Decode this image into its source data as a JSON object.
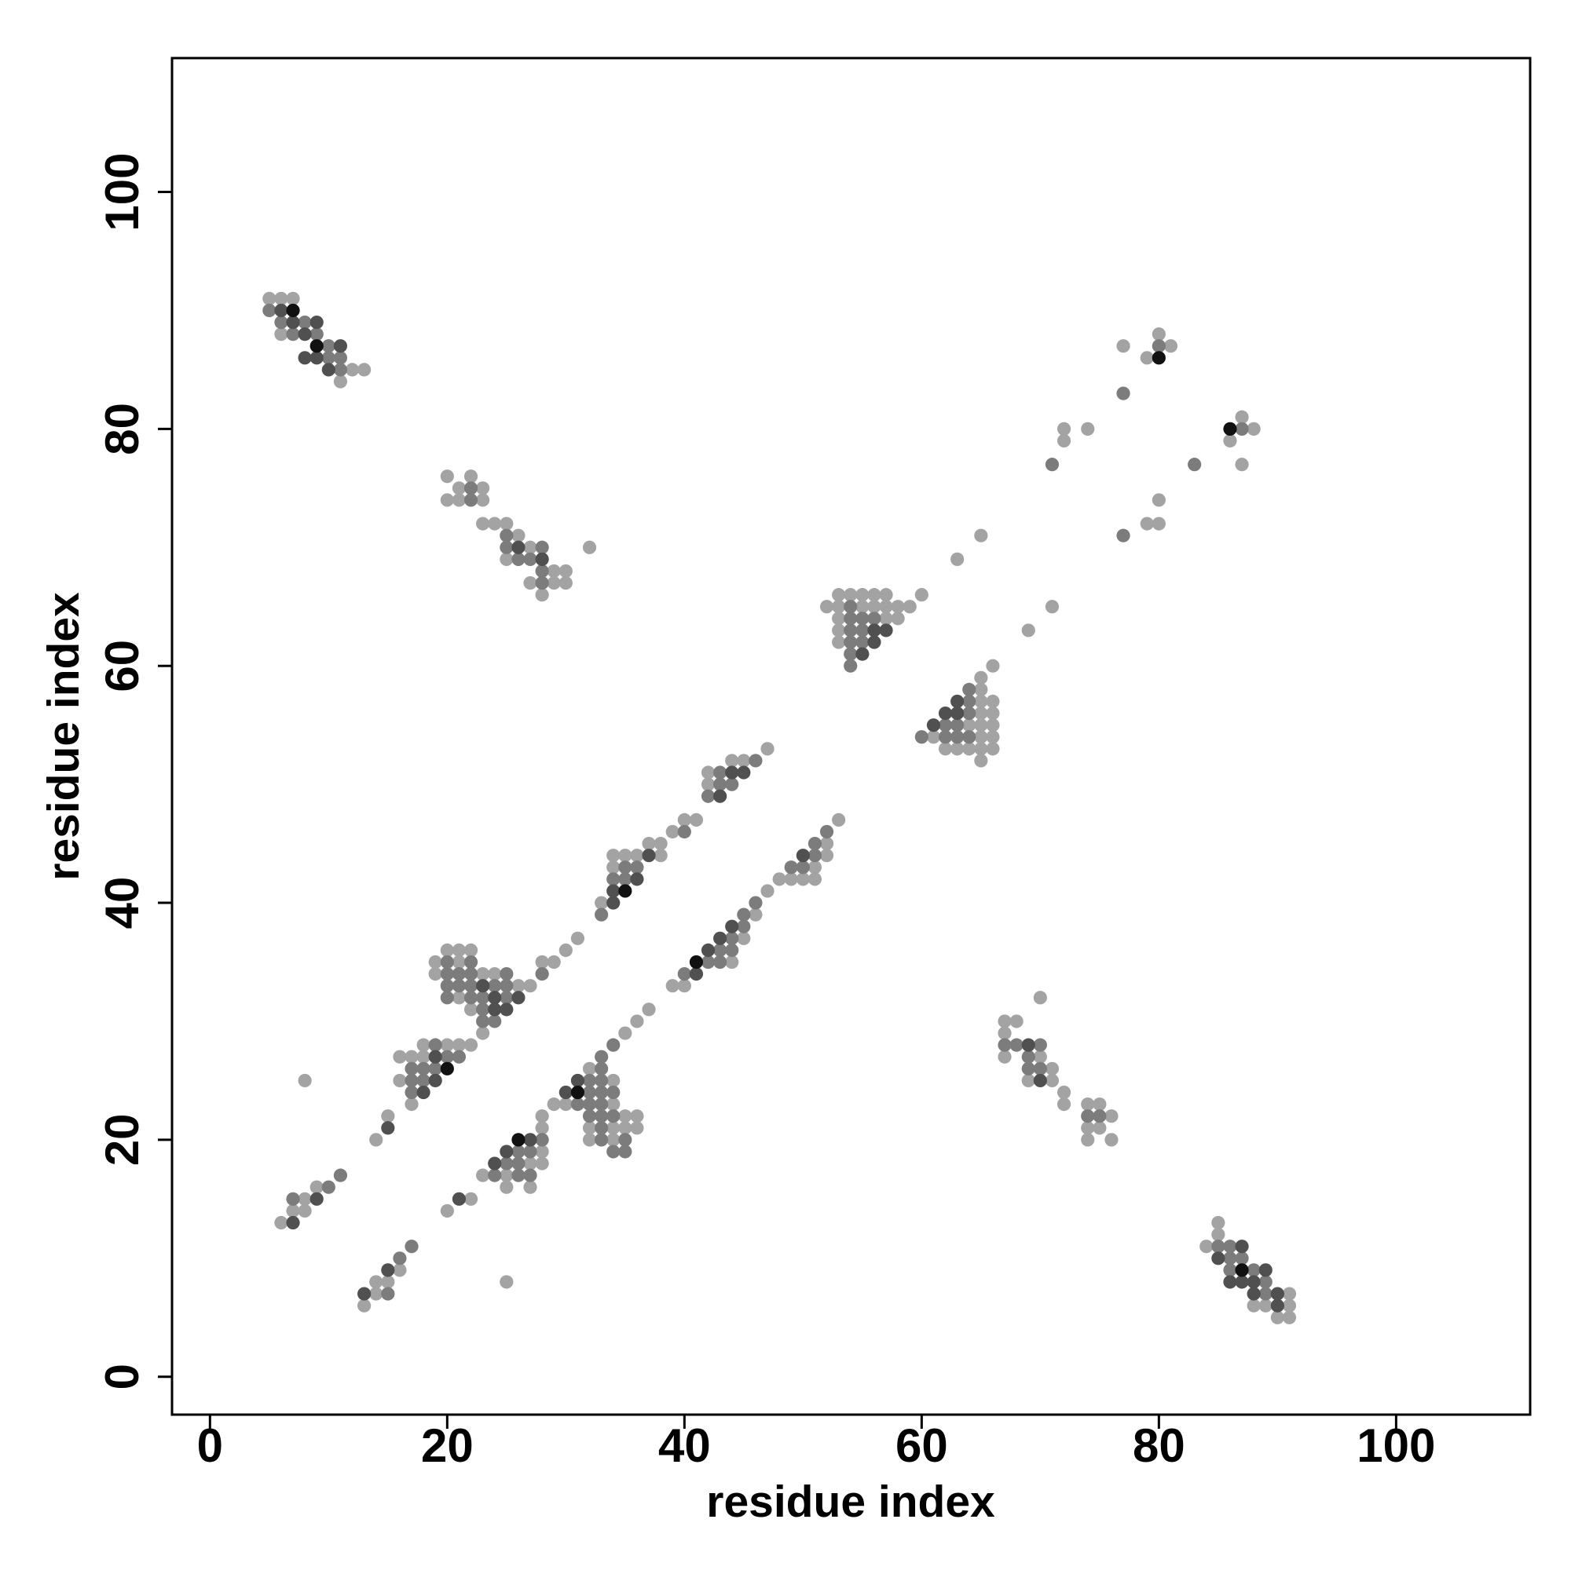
{
  "chart_data": {
    "type": "scatter",
    "x_label": "residue index",
    "y_label": "residue index",
    "xlim": [
      -3.2,
      111.3
    ],
    "ylim": [
      -3.2,
      111.3
    ],
    "xticks": [
      0,
      20,
      40,
      60,
      80,
      100
    ],
    "yticks": [
      0,
      20,
      40,
      60,
      80,
      100
    ],
    "series": [
      {
        "color": "#a3a3a3",
        "x": [
          5,
          6,
          7,
          6,
          12,
          13,
          11,
          85,
          85,
          84,
          91,
          88,
          89,
          91,
          90,
          91,
          20,
          22,
          20,
          21,
          23,
          23,
          21,
          23,
          24,
          25,
          26,
          27,
          25,
          29,
          30,
          27,
          29,
          30,
          28,
          32,
          6,
          7,
          8,
          8,
          9,
          8,
          14,
          15,
          16,
          16,
          17,
          17,
          18,
          18,
          20,
          21,
          22,
          19,
          19,
          20,
          21,
          22,
          21,
          23,
          24,
          26,
          21,
          27,
          22,
          23,
          28,
          29,
          30,
          31,
          33,
          34,
          34,
          35,
          36,
          37,
          38,
          38,
          39,
          40,
          41,
          42,
          42,
          44,
          45,
          47,
          13,
          14,
          14,
          15,
          16,
          25,
          20,
          22,
          23,
          25,
          27,
          25,
          27,
          28,
          28,
          28,
          28,
          29,
          30,
          32,
          32,
          32,
          34,
          34,
          34,
          34,
          35,
          35,
          36,
          36,
          35,
          36,
          37,
          39,
          40,
          44,
          45,
          46,
          47,
          48,
          49,
          50,
          51,
          51,
          52,
          52,
          53,
          52,
          53,
          54,
          55,
          56,
          57,
          53,
          55,
          56,
          57,
          58,
          59,
          53,
          57,
          58,
          53,
          53,
          60,
          63,
          65,
          69,
          71,
          61,
          62,
          63,
          64,
          64,
          65,
          65,
          65,
          65,
          65,
          65,
          65,
          65,
          66,
          66,
          66,
          66,
          66,
          66,
          67,
          67,
          67,
          68,
          69,
          70,
          70,
          71,
          71,
          72,
          72,
          74,
          74,
          74,
          75,
          75,
          76,
          76,
          72,
          72,
          74,
          77,
          79,
          80,
          81,
          80,
          80,
          79,
          86,
          87,
          87,
          88
        ],
        "y": [
          91,
          91,
          91,
          88,
          85,
          85,
          84,
          13,
          12,
          11,
          7,
          6,
          6,
          6,
          5,
          5,
          76,
          76,
          74,
          75,
          75,
          74,
          74,
          72,
          72,
          72,
          71,
          70,
          69,
          68,
          68,
          67,
          67,
          67,
          66,
          70,
          13,
          14,
          14,
          15,
          16,
          25,
          20,
          22,
          25,
          27,
          23,
          27,
          27,
          28,
          28,
          28,
          28,
          35,
          34,
          36,
          36,
          36,
          35,
          34,
          34,
          33,
          32,
          33,
          31,
          29,
          35,
          35,
          36,
          37,
          40,
          43,
          44,
          44,
          44,
          45,
          45,
          44,
          46,
          47,
          47,
          50,
          51,
          52,
          52,
          53,
          6,
          7,
          8,
          8,
          9,
          8,
          14,
          15,
          17,
          17,
          18,
          16,
          16,
          19,
          21,
          22,
          18,
          23,
          23,
          26,
          21,
          20,
          25,
          23,
          21,
          20,
          22,
          21,
          22,
          21,
          29,
          30,
          31,
          33,
          33,
          35,
          37,
          39,
          41,
          42,
          42,
          42,
          42,
          43,
          44,
          45,
          47,
          65,
          66,
          66,
          66,
          66,
          66,
          65,
          65,
          65,
          65,
          65,
          65,
          64,
          64,
          64,
          63,
          62,
          66,
          69,
          71,
          63,
          65,
          54,
          53,
          53,
          53,
          55,
          53,
          54,
          55,
          56,
          57,
          58,
          59,
          52,
          53,
          54,
          55,
          56,
          57,
          60,
          27,
          29,
          30,
          30,
          25,
          27,
          32,
          26,
          25,
          24,
          23,
          23,
          21,
          20,
          23,
          21,
          22,
          20,
          79,
          80,
          80,
          87,
          86,
          88,
          87,
          74,
          72,
          72,
          79,
          81,
          77,
          80
        ]
      },
      {
        "color": "#7c7c7c",
        "x": [
          5,
          6,
          8,
          7,
          9,
          10,
          10,
          11,
          11,
          85,
          86,
          86,
          87,
          86,
          88,
          89,
          89,
          22,
          22,
          25,
          25,
          28,
          26,
          27,
          28,
          28,
          7,
          10,
          11,
          17,
          17,
          17,
          18,
          18,
          19,
          19,
          20,
          21,
          20,
          22,
          20,
          21,
          22,
          25,
          20,
          21,
          22,
          24,
          25,
          20,
          22,
          23,
          25,
          23,
          23,
          24,
          28,
          33,
          34,
          35,
          35,
          36,
          40,
          42,
          43,
          43,
          44,
          46,
          15,
          16,
          17,
          24,
          26,
          27,
          25,
          26,
          26,
          27,
          28,
          31,
          32,
          32,
          32,
          33,
          33,
          33,
          33,
          33,
          32,
          33,
          33,
          33,
          34,
          34,
          34,
          35,
          35,
          34,
          40,
          42,
          43,
          43,
          44,
          44,
          45,
          45,
          46,
          49,
          50,
          51,
          51,
          52,
          54,
          54,
          55,
          56,
          54,
          55,
          54,
          55,
          54,
          54,
          60,
          62,
          62,
          63,
          63,
          64,
          64,
          64,
          64,
          67,
          68,
          69,
          69,
          70,
          70,
          74,
          75,
          71,
          77,
          77,
          80,
          83,
          87
        ],
        "y": [
          90,
          89,
          89,
          88,
          88,
          87,
          86,
          86,
          85,
          11,
          11,
          10,
          10,
          9,
          9,
          8,
          7,
          74,
          75,
          71,
          70,
          70,
          69,
          69,
          68,
          67,
          15,
          16,
          17,
          24,
          25,
          26,
          25,
          26,
          26,
          28,
          27,
          27,
          35,
          35,
          34,
          34,
          34,
          34,
          33,
          33,
          33,
          33,
          33,
          32,
          32,
          32,
          32,
          31,
          30,
          30,
          34,
          39,
          42,
          42,
          43,
          43,
          46,
          49,
          50,
          51,
          50,
          52,
          7,
          10,
          11,
          17,
          17,
          17,
          18,
          18,
          19,
          19,
          20,
          23,
          25,
          24,
          23,
          27,
          26,
          25,
          24,
          23,
          22,
          22,
          21,
          20,
          24,
          22,
          19,
          20,
          19,
          28,
          34,
          35,
          35,
          36,
          36,
          37,
          38,
          39,
          40,
          43,
          43,
          44,
          45,
          46,
          65,
          64,
          64,
          64,
          63,
          63,
          62,
          62,
          61,
          60,
          54,
          54,
          55,
          54,
          55,
          54,
          56,
          57,
          58,
          28,
          28,
          27,
          26,
          28,
          26,
          22,
          22,
          77,
          83,
          71,
          87,
          77,
          80
        ]
      },
      {
        "color": "#505050",
        "x": [
          6,
          7,
          9,
          8,
          11,
          8,
          9,
          10,
          87,
          85,
          89,
          86,
          87,
          88,
          88,
          90,
          90,
          26,
          28,
          7,
          9,
          15,
          18,
          19,
          19,
          23,
          24,
          26,
          24,
          25,
          34,
          34,
          36,
          37,
          43,
          44,
          45,
          13,
          15,
          21,
          24,
          25,
          27,
          30,
          31,
          41,
          42,
          43,
          44,
          50,
          56,
          57,
          56,
          55,
          61,
          62,
          63,
          63,
          69,
          70
        ],
        "y": [
          90,
          89,
          89,
          88,
          87,
          86,
          86,
          85,
          11,
          10,
          9,
          8,
          8,
          8,
          7,
          7,
          6,
          70,
          69,
          13,
          15,
          21,
          24,
          25,
          27,
          33,
          32,
          32,
          31,
          31,
          40,
          41,
          42,
          44,
          49,
          51,
          51,
          7,
          9,
          15,
          18,
          19,
          20,
          24,
          25,
          34,
          36,
          37,
          38,
          44,
          63,
          63,
          62,
          61,
          55,
          56,
          56,
          57,
          28,
          25
        ]
      },
      {
        "color": "#111111",
        "x": [
          7,
          9,
          87,
          20,
          35,
          26,
          31,
          41,
          80,
          86
        ],
        "y": [
          90,
          87,
          9,
          26,
          41,
          20,
          24,
          35,
          86,
          80
        ]
      }
    ]
  }
}
